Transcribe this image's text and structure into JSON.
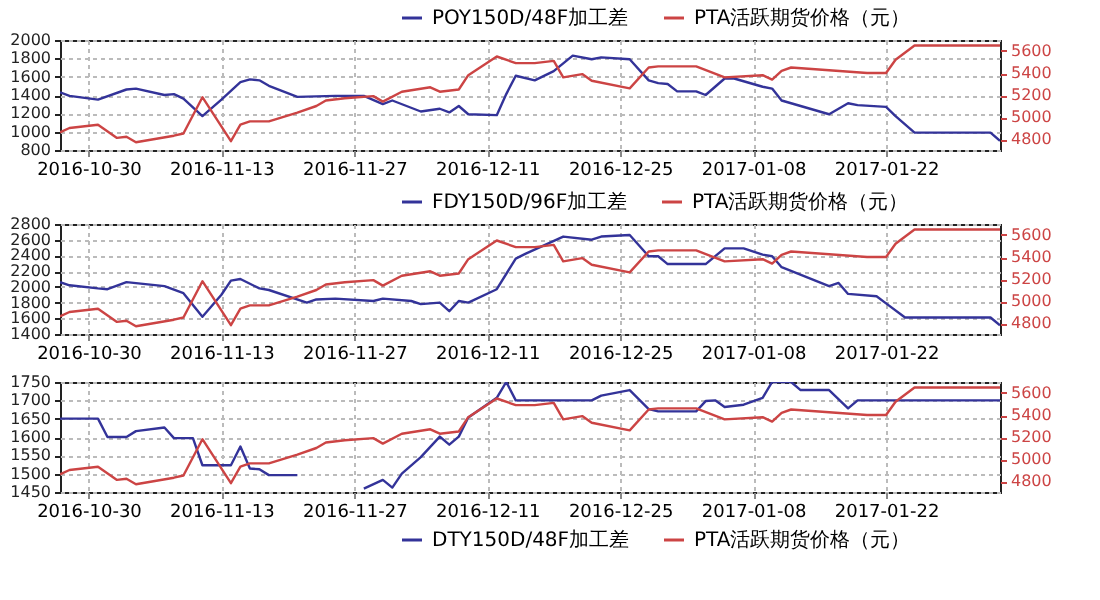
{
  "chart_data": [
    {
      "type": "line",
      "xlim": [
        "2016-10-27",
        "2017-02-03"
      ],
      "xticks": [
        "2016-10-30",
        "2016-11-13",
        "2016-11-27",
        "2016-12-11",
        "2016-12-25",
        "2017-01-08",
        "2017-01-22"
      ],
      "ylim": [
        800,
        2000
      ],
      "yticks": [
        800,
        1000,
        1200,
        1400,
        1600,
        1800,
        2000
      ],
      "y2lim": [
        4700,
        5700
      ],
      "y2ticks": [
        4800,
        5000,
        5200,
        5400,
        5600
      ],
      "grid": true,
      "legend": "top right",
      "series": [
        {
          "name": "POY150D/48F加工差",
          "color": "#333399",
          "x": [
            "2016-10-27",
            "2016-10-28",
            "2016-10-31",
            "2016-11-03",
            "2016-11-04",
            "2016-11-07",
            "2016-11-08",
            "2016-11-09",
            "2016-11-11",
            "2016-11-13",
            "2016-11-15",
            "2016-11-16",
            "2016-11-17",
            "2016-11-18",
            "2016-11-21",
            "2016-11-25",
            "2016-11-28",
            "2016-11-30",
            "2016-12-01",
            "2016-12-04",
            "2016-12-06",
            "2016-12-07",
            "2016-12-08",
            "2016-12-09",
            "2016-12-12",
            "2016-12-13",
            "2016-12-14",
            "2016-12-16",
            "2016-12-18",
            "2016-12-20",
            "2016-12-22",
            "2016-12-23",
            "2016-12-26",
            "2016-12-28",
            "2016-12-29",
            "2016-12-30",
            "2016-12-31",
            "2017-01-02",
            "2017-01-03",
            "2017-01-05",
            "2017-01-06",
            "2017-01-09",
            "2017-01-10",
            "2017-01-11",
            "2017-01-16",
            "2017-01-18",
            "2017-01-19",
            "2017-01-22",
            "2017-01-23",
            "2017-01-25",
            "2017-02-02",
            "2017-02-03"
          ],
          "values": [
            1430,
            1390,
            1350,
            1460,
            1470,
            1400,
            1410,
            1360,
            1170,
            1350,
            1540,
            1570,
            1560,
            1500,
            1380,
            1390,
            1390,
            1300,
            1340,
            1220,
            1250,
            1210,
            1280,
            1190,
            1180,
            1410,
            1610,
            1560,
            1660,
            1830,
            1790,
            1810,
            1790,
            1560,
            1530,
            1520,
            1440,
            1440,
            1400,
            1580,
            1580,
            1490,
            1470,
            1340,
            1190,
            1310,
            1290,
            1270,
            1170,
            990,
            990,
            900
          ]
        },
        {
          "name": "PTA活跃期货价格（元）",
          "color": "#cc4444",
          "axis": "y2",
          "x": [
            "2016-10-27",
            "2016-10-28",
            "2016-10-31",
            "2016-11-02",
            "2016-11-03",
            "2016-11-04",
            "2016-11-08",
            "2016-11-09",
            "2016-11-11",
            "2016-11-14",
            "2016-11-15",
            "2016-11-16",
            "2016-11-18",
            "2016-11-21",
            "2016-11-23",
            "2016-11-24",
            "2016-11-26",
            "2016-11-29",
            "2016-11-30",
            "2016-12-02",
            "2016-12-05",
            "2016-12-06",
            "2016-12-08",
            "2016-12-09",
            "2016-12-12",
            "2016-12-14",
            "2016-12-16",
            "2016-12-18",
            "2016-12-19",
            "2016-12-21",
            "2016-12-22",
            "2016-12-26",
            "2016-12-28",
            "2016-12-29",
            "2017-01-02",
            "2017-01-05",
            "2017-01-09",
            "2017-01-10",
            "2017-01-11",
            "2017-01-12",
            "2017-01-20",
            "2017-01-22",
            "2017-01-23",
            "2017-01-25",
            "2017-02-03"
          ],
          "values": [
            4860,
            4900,
            4930,
            4810,
            4820,
            4770,
            4830,
            4850,
            5180,
            4780,
            4930,
            4960,
            4960,
            5040,
            5100,
            5150,
            5170,
            5190,
            5140,
            5230,
            5270,
            5230,
            5250,
            5380,
            5550,
            5490,
            5490,
            5510,
            5360,
            5390,
            5330,
            5260,
            5450,
            5460,
            5460,
            5360,
            5380,
            5340,
            5420,
            5450,
            5400,
            5400,
            5520,
            5650,
            5650
          ]
        }
      ]
    },
    {
      "type": "line",
      "xlim": [
        "2016-10-27",
        "2017-02-03"
      ],
      "xticks": [
        "2016-10-30",
        "2016-11-13",
        "2016-11-27",
        "2016-12-11",
        "2016-12-25",
        "2017-01-08",
        "2017-01-22"
      ],
      "ylim": [
        1400,
        2800
      ],
      "yticks": [
        1400,
        1600,
        1800,
        2000,
        2200,
        2400,
        2600,
        2800
      ],
      "y2lim": [
        4700,
        5700
      ],
      "y2ticks": [
        4800,
        5000,
        5200,
        5400,
        5600
      ],
      "grid": true,
      "legend": "top right",
      "series": [
        {
          "name": "FDY150D/96F加工差",
          "color": "#333399",
          "x": [
            "2016-10-27",
            "2016-10-28",
            "2016-10-31",
            "2016-11-01",
            "2016-11-03",
            "2016-11-07",
            "2016-11-09",
            "2016-11-11",
            "2016-11-13",
            "2016-11-14",
            "2016-11-15",
            "2016-11-17",
            "2016-11-18",
            "2016-11-22",
            "2016-11-23",
            "2016-11-25",
            "2016-11-29",
            "2016-11-30",
            "2016-12-03",
            "2016-12-04",
            "2016-12-06",
            "2016-12-07",
            "2016-12-08",
            "2016-12-09",
            "2016-12-12",
            "2016-12-14",
            "2016-12-15",
            "2016-12-19",
            "2016-12-22",
            "2016-12-23",
            "2016-12-26",
            "2016-12-28",
            "2016-12-29",
            "2016-12-30",
            "2017-01-03",
            "2017-01-05",
            "2017-01-07",
            "2017-01-09",
            "2017-01-10",
            "2017-01-11",
            "2017-01-16",
            "2017-01-17",
            "2017-01-18",
            "2017-01-21",
            "2017-01-22",
            "2017-01-24",
            "2017-02-02",
            "2017-02-03"
          ],
          "values": [
            2060,
            2020,
            1980,
            1970,
            2060,
            2010,
            1920,
            1620,
            1900,
            2080,
            2100,
            1980,
            1960,
            1800,
            1840,
            1850,
            1820,
            1850,
            1820,
            1780,
            1800,
            1690,
            1820,
            1800,
            1970,
            2360,
            2420,
            2640,
            2600,
            2640,
            2660,
            2390,
            2390,
            2290,
            2290,
            2490,
            2490,
            2410,
            2390,
            2250,
            2010,
            2050,
            1910,
            1880,
            1790,
            1610,
            1610,
            1510
          ]
        },
        {
          "name": "PTA活跃期货价格（元）",
          "color": "#cc4444",
          "axis": "y2",
          "x": [
            "2016-10-27",
            "2016-10-28",
            "2016-10-31",
            "2016-11-02",
            "2016-11-03",
            "2016-11-04",
            "2016-11-08",
            "2016-11-09",
            "2016-11-11",
            "2016-11-14",
            "2016-11-15",
            "2016-11-16",
            "2016-11-18",
            "2016-11-21",
            "2016-11-23",
            "2016-11-24",
            "2016-11-26",
            "2016-11-29",
            "2016-11-30",
            "2016-12-02",
            "2016-12-05",
            "2016-12-06",
            "2016-12-08",
            "2016-12-09",
            "2016-12-12",
            "2016-12-14",
            "2016-12-16",
            "2016-12-18",
            "2016-12-19",
            "2016-12-21",
            "2016-12-22",
            "2016-12-26",
            "2016-12-28",
            "2016-12-29",
            "2017-01-02",
            "2017-01-05",
            "2017-01-09",
            "2017-01-10",
            "2017-01-11",
            "2017-01-12",
            "2017-01-20",
            "2017-01-22",
            "2017-01-23",
            "2017-01-25",
            "2017-02-03"
          ],
          "values": [
            4860,
            4900,
            4930,
            4810,
            4820,
            4770,
            4830,
            4850,
            5180,
            4780,
            4930,
            4960,
            4960,
            5040,
            5100,
            5150,
            5170,
            5190,
            5140,
            5230,
            5270,
            5230,
            5250,
            5380,
            5550,
            5490,
            5490,
            5510,
            5360,
            5390,
            5330,
            5260,
            5450,
            5460,
            5460,
            5360,
            5380,
            5340,
            5420,
            5450,
            5400,
            5400,
            5520,
            5650,
            5650
          ]
        }
      ]
    },
    {
      "type": "line",
      "xlim": [
        "2016-10-27",
        "2017-02-03"
      ],
      "xticks": [
        "2016-10-30",
        "2016-11-13",
        "2016-11-27",
        "2016-12-11",
        "2016-12-25",
        "2017-01-08",
        "2017-01-22"
      ],
      "ylim": [
        1450,
        1750
      ],
      "yticks": [
        1450,
        1500,
        1550,
        1600,
        1650,
        1700,
        1750
      ],
      "y2lim": [
        4700,
        5700
      ],
      "y2ticks": [
        4800,
        5000,
        5200,
        5400,
        5600
      ],
      "grid": true,
      "legend": "bottom right",
      "series": [
        {
          "name": "DTY150D/48F加工差",
          "color": "#333399",
          "x": [
            "2016-10-27",
            "2016-10-31",
            "2016-11-01",
            "2016-11-03",
            "2016-11-04",
            "2016-11-07",
            "2016-11-08",
            "2016-11-10",
            "2016-11-11",
            "2016-11-14",
            "2016-11-15",
            "2016-11-16",
            "2016-11-17",
            "2016-11-18",
            "2016-11-21",
            "2016-11-22",
            "2016-11-24",
            "2016-11-28",
            "2016-11-30",
            "2016-12-01",
            "2016-12-02",
            "2016-12-04",
            "2016-12-06",
            "2016-12-07",
            "2016-12-08",
            "2016-12-09",
            "2016-12-12",
            "2016-12-13",
            "2016-12-14",
            "2016-12-22",
            "2016-12-23",
            "2016-12-26",
            "2016-12-28",
            "2016-12-29",
            "2017-01-02",
            "2017-01-03",
            "2017-01-04",
            "2017-01-05",
            "2017-01-07",
            "2017-01-09",
            "2017-01-10",
            "2017-01-12",
            "2017-01-13",
            "2017-01-16",
            "2017-01-18",
            "2017-01-19",
            "2017-02-03"
          ],
          "values": [
            1650,
            1650,
            1600,
            1600,
            1616,
            1626,
            1597,
            1597,
            1523,
            1523,
            1574,
            1514,
            1512,
            1496,
            1496,
            null,
            null,
            1459,
            1483,
            1462,
            1500,
            1545,
            1601,
            1579,
            1601,
            1653,
            1707,
            1750,
            1700,
            1700,
            1713,
            1728,
            1676,
            1670,
            1670,
            1698,
            1700,
            1682,
            1688,
            1707,
            1750,
            1750,
            1728,
            1728,
            1678,
            1700,
            1700
          ]
        },
        {
          "name": "PTA活跃期货价格（元）",
          "color": "#cc4444",
          "axis": "y2",
          "x": [
            "2016-10-27",
            "2016-10-28",
            "2016-10-31",
            "2016-11-02",
            "2016-11-03",
            "2016-11-04",
            "2016-11-08",
            "2016-11-09",
            "2016-11-11",
            "2016-11-14",
            "2016-11-15",
            "2016-11-16",
            "2016-11-18",
            "2016-11-21",
            "2016-11-23",
            "2016-11-24",
            "2016-11-26",
            "2016-11-29",
            "2016-11-30",
            "2016-12-02",
            "2016-12-05",
            "2016-12-06",
            "2016-12-08",
            "2016-12-09",
            "2016-12-12",
            "2016-12-14",
            "2016-12-16",
            "2016-12-18",
            "2016-12-19",
            "2016-12-21",
            "2016-12-22",
            "2016-12-26",
            "2016-12-28",
            "2016-12-29",
            "2017-01-02",
            "2017-01-05",
            "2017-01-09",
            "2017-01-10",
            "2017-01-11",
            "2017-01-12",
            "2017-01-20",
            "2017-01-22",
            "2017-01-23",
            "2017-01-25",
            "2017-02-03"
          ],
          "values": [
            4860,
            4900,
            4930,
            4810,
            4820,
            4770,
            4830,
            4850,
            5180,
            4780,
            4930,
            4960,
            4960,
            5040,
            5100,
            5150,
            5170,
            5190,
            5140,
            5230,
            5270,
            5230,
            5250,
            5380,
            5550,
            5490,
            5490,
            5510,
            5360,
            5390,
            5330,
            5260,
            5450,
            5460,
            5460,
            5360,
            5380,
            5340,
            5420,
            5450,
            5400,
            5400,
            5520,
            5650,
            5650
          ]
        }
      ]
    }
  ]
}
